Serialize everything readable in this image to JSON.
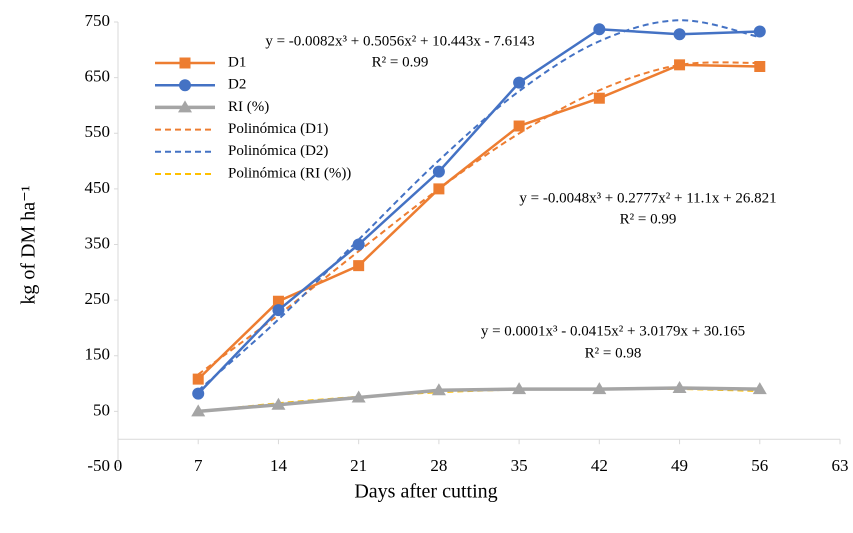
{
  "chart_data": {
    "type": "line",
    "x_label": "Days after cutting",
    "y_label": "kg of DM ha⁻¹",
    "x": [
      7,
      14,
      21,
      28,
      35,
      42,
      49,
      56
    ],
    "xlim": [
      0,
      63
    ],
    "xticks": [
      0,
      7,
      14,
      21,
      28,
      35,
      42,
      49,
      56,
      63
    ],
    "ylim": [
      -50,
      750
    ],
    "yticks": [
      -50,
      50,
      150,
      250,
      350,
      450,
      550,
      650,
      750
    ],
    "grid": false,
    "legend": "upper-left",
    "series": [
      {
        "name": "D1",
        "color": "#ed7d31",
        "marker": "square",
        "dashed": false,
        "values": [
          108,
          248,
          312,
          450,
          563,
          613,
          673,
          670
        ]
      },
      {
        "name": "D2",
        "color": "#4472c4",
        "marker": "circle",
        "dashed": false,
        "values": [
          82,
          232,
          350,
          481,
          641,
          737,
          728,
          733
        ]
      },
      {
        "name": "RI (%)",
        "color": "#a5a5a5",
        "marker": "triangle",
        "dashed": false,
        "values": [
          50,
          62,
          75,
          88,
          90,
          90,
          92,
          90
        ]
      },
      {
        "name": "Polinómica (D1)",
        "color": "#ed7d31",
        "marker": "none",
        "dashed": true,
        "values": [
          116.5,
          223.5,
          337.9,
          450.0,
          549.7,
          627.3,
          672.8,
          676.3
        ]
      },
      {
        "name": "Polinómica (D2)",
        "color": "#4472c4",
        "marker": "none",
        "dashed": true,
        "values": [
          87.4,
          215.2,
          358.8,
          501.2,
          625.7,
          715.4,
          753.2,
          722.7
        ]
      },
      {
        "name": "Polinómica (RI (%))",
        "color": "#ffc000",
        "marker": "none",
        "dashed": true,
        "values": [
          49.3,
          64.6,
          76.2,
          84.3,
          89.3,
          91.1,
          90.2,
          86.6
        ]
      }
    ],
    "annotations": [
      "y = -0.0082x³ + 0.5056x² + 10.443x - 7.6143",
      "R² = 0.99",
      "y = -0.0048x³ + 0.2777x² + 11.1x + 26.821",
      "R² = 0.99",
      "y = 0.0001x³ - 0.0415x² + 3.0179x + 30.165",
      "R² = 0.98"
    ]
  }
}
